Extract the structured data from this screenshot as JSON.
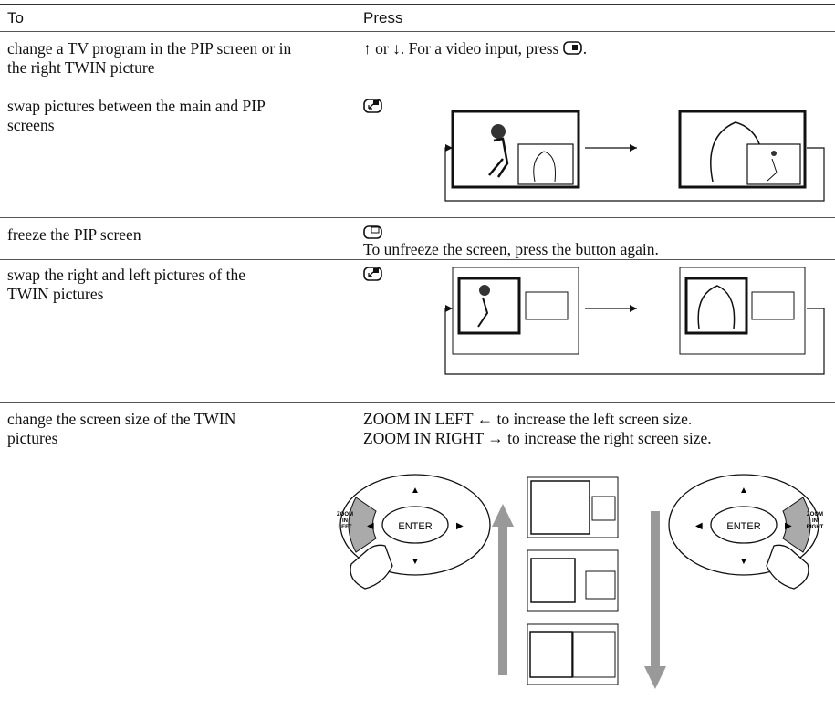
{
  "header": {
    "col1": "To",
    "col2": "Press"
  },
  "rows": [
    {
      "to": "change a TV program in the PIP screen or in the right TWIN picture",
      "press": "↑ or ↓. For a video input, press",
      "press_end": "."
    },
    {
      "to": "swap pictures between the main and PIP screens"
    },
    {
      "to": "freeze the PIP screen",
      "press": "To unfreeze the screen, press the button again."
    },
    {
      "to": "swap the right and left pictures of the TWIN pictures"
    },
    {
      "to": "change the screen size of the TWIN pictures",
      "press_lines": [
        "ZOOM IN LEFT ← to increase the left screen size.",
        "ZOOM IN RIGHT → to increase the right screen size."
      ],
      "remote_left": {
        "zoom": [
          "ZOOM",
          "IN",
          "LEFT"
        ],
        "enter": "ENTER"
      },
      "remote_right": {
        "zoom": [
          "ZOOM",
          "IN",
          "RIGHT"
        ],
        "enter": "ENTER"
      }
    }
  ]
}
